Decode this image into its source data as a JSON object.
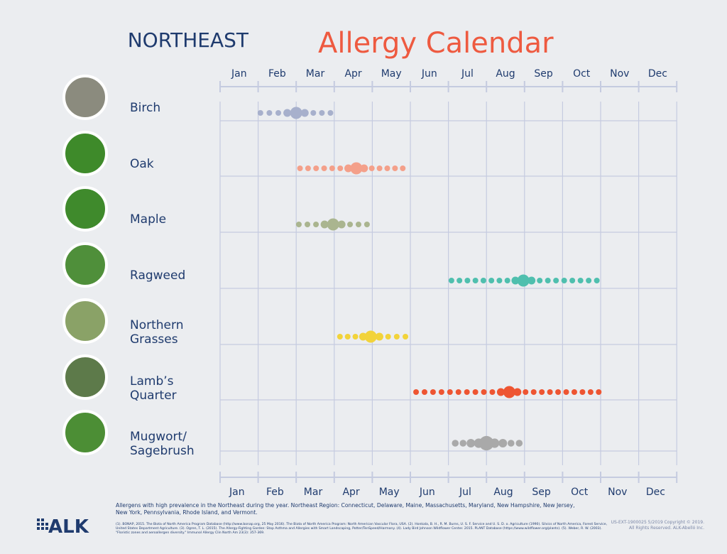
{
  "header": {
    "region": "NORTHEAST",
    "title": "Allergy Calendar"
  },
  "months": [
    "Jan",
    "Feb",
    "Mar",
    "Apr",
    "May",
    "Jun",
    "Jul",
    "Aug",
    "Sep",
    "Oct",
    "Nov",
    "Dec"
  ],
  "allergens": [
    {
      "lines": [
        "Birch"
      ],
      "color": "#a7b0cc",
      "season": {
        "start": 1.06,
        "peak": 2.0,
        "end": 2.9
      }
    },
    {
      "lines": [
        "Oak"
      ],
      "color": "#f4a08a",
      "season": {
        "start": 2.1,
        "peak": 3.58,
        "end": 4.8
      }
    },
    {
      "lines": [
        "Maple"
      ],
      "color": "#aab58f",
      "season": {
        "start": 2.07,
        "peak": 2.97,
        "end": 3.86
      }
    },
    {
      "lines": [
        "Ragweed"
      ],
      "color": "#4fbfae",
      "season": {
        "start": 6.08,
        "peak": 7.97,
        "end": 9.9
      }
    },
    {
      "lines": [
        "Northern",
        "Grasses"
      ],
      "color": "#f2d33a",
      "season": {
        "start": 3.15,
        "peak": 3.96,
        "end": 4.87
      }
    },
    {
      "lines": [
        "Lamb’s",
        "Quarter"
      ],
      "color": "#ee5532",
      "season": {
        "start": 5.15,
        "peak": 7.6,
        "end": 9.95
      }
    },
    {
      "lines": [
        "Mugwort/",
        "Sagebrush"
      ],
      "color": "#a9a9a9",
      "season": {
        "start": 6.18,
        "peak": 7.0,
        "end": 7.86
      }
    }
  ],
  "footer": {
    "note": "Allergens with high prevalence in the Northeast during the year. Northeast Region: Connecticut, Delaware, Maine, Massachusetts, Maryland, New Hampshire, New Jersey, New York, Pennsylvania, Rhode Island, and Vermont.",
    "references": "(1). BONAP, 2015. The Biota of North America Program Database (http://www.bonap.org, 25 May 2016). The Biota of North America Program: North American Vascular Flora, USA. (2). Honkala, B. H., R. M. Burns, U. S. F. Service and U. S. D. o. Agriculture (1990). Silvics of North America, Forest Service, United States Department Agriculture. (3). Ogren, T. L. (2015). The Allergy-Fighting Garden: Stop Asthma and Allergies with Smart Landscaping, Potter/TenSpeed/Harmony. (4). Lady Bird Johnson Wildflower Center. 2015. PLANT Database (https://www.wildflower.org/plants). (5). Weber, R. W. (2003). \"Floristic zones and aeroallergen diversity.\" Immunol Allergy Clin North Am 23(3): 357-369.",
    "logo": "ALK",
    "code": "US-EXT-1900025 5/2019 Copyright © 2019.",
    "rights": "All Rights Reserved. ALK-Abelló Inc."
  }
}
